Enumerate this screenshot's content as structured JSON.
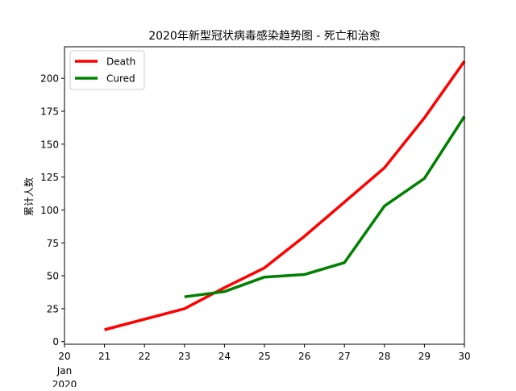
{
  "chart_data": {
    "type": "line",
    "title": "2020年新型冠状病毒感染趋势图 - 死亡和治愈",
    "xlabel": "",
    "ylabel": "累计人数",
    "x_ticks": [
      "20",
      "21",
      "22",
      "23",
      "24",
      "25",
      "26",
      "27",
      "28",
      "29",
      "30"
    ],
    "x_tick_sublabel": [
      "Jan",
      "2020"
    ],
    "xlim": [
      20,
      30
    ],
    "ylim": [
      -2,
      224
    ],
    "y_ticks": [
      0,
      25,
      50,
      75,
      100,
      125,
      150,
      175,
      200
    ],
    "legend_position": "top-left",
    "grid": false,
    "series": [
      {
        "name": "Death",
        "color": "#ff0000",
        "x": [
          21,
          23,
          24,
          25,
          26,
          27,
          28,
          29,
          30
        ],
        "values": [
          9,
          25,
          41,
          56,
          80,
          106,
          132,
          170,
          213
        ]
      },
      {
        "name": "Cured",
        "color": "#008000",
        "x": [
          23,
          24,
          25,
          26,
          27,
          28,
          29,
          30
        ],
        "values": [
          34,
          38,
          49,
          51,
          60,
          103,
          124,
          171
        ]
      }
    ]
  }
}
